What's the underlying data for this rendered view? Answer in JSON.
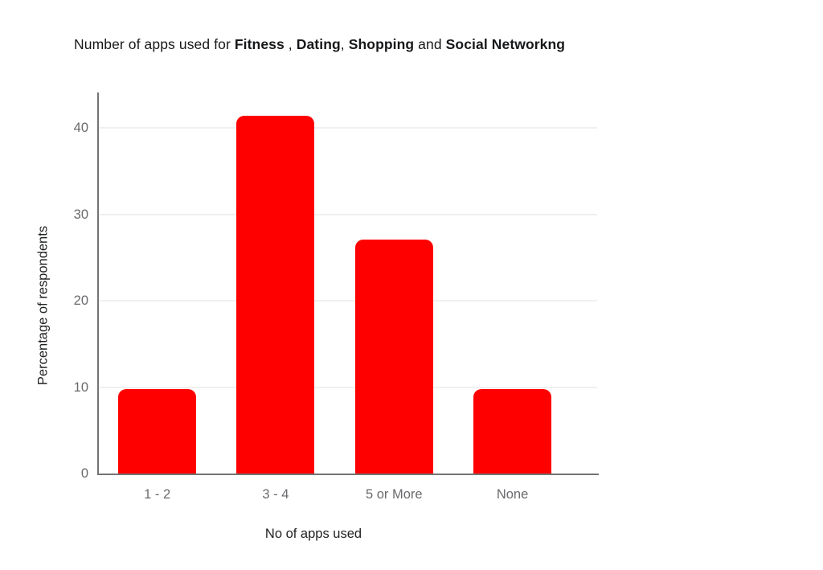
{
  "page": {
    "background": "#ffffff"
  },
  "title_segments": [
    {
      "text": "Number of apps used for ",
      "bold": false
    },
    {
      "text": "Fitness",
      "bold": true
    },
    {
      "text": " , ",
      "bold": false
    },
    {
      "text": "Dating",
      "bold": true
    },
    {
      "text": ", ",
      "bold": false
    },
    {
      "text": "Shopping",
      "bold": true
    },
    {
      "text": " and ",
      "bold": false
    },
    {
      "text": "Social Networkng",
      "bold": true
    }
  ],
  "chart_data": {
    "type": "bar",
    "title": "Number of apps used for Fitness , Dating, Shopping and Social Networkng",
    "categories": [
      "1 - 2",
      "3 - 4",
      "5 or More",
      "None"
    ],
    "values": [
      9.8,
      41.4,
      27.1,
      9.8
    ],
    "xlabel": "No of apps used",
    "ylabel": "Percentage of respondents",
    "yticks": [
      0,
      10,
      20,
      30,
      40
    ],
    "ylim": [
      0,
      44
    ],
    "grid": true,
    "legend": false,
    "bar_color": "#ff0000",
    "gridline_color": "#f0f0f0",
    "axis_line_color": "#737373",
    "tick_label_color": "#696a6d",
    "axis_title_color": "#1f2022",
    "title_color": "#17181a"
  }
}
